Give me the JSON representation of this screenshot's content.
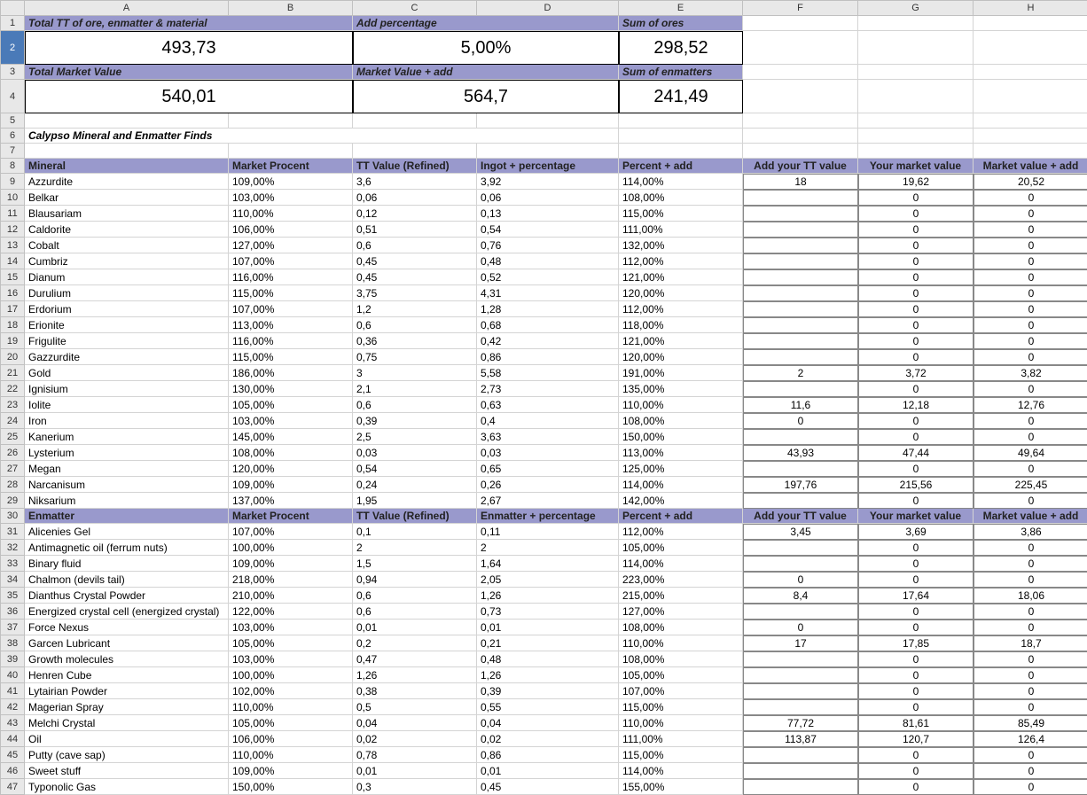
{
  "columns": [
    "A",
    "B",
    "C",
    "D",
    "E",
    "F",
    "G",
    "H"
  ],
  "summary": {
    "r1": {
      "a_label": "Total TT of ore, enmatter & material",
      "c_label": "Add percentage",
      "e_label": "Sum of ores"
    },
    "r2": {
      "a_val": "493,73",
      "c_val": "5,00%",
      "e_val": "298,52"
    },
    "r3": {
      "a_label": "Total Market Value",
      "c_label": "Market Value + add",
      "e_label": "Sum of enmatters"
    },
    "r4": {
      "a_val": "540,01",
      "c_val": "564,7",
      "e_val": "241,49"
    }
  },
  "section_title": "Calypso Mineral and Enmatter Finds",
  "mineral_header": {
    "a": "Mineral",
    "b": "Market Procent",
    "c": "TT Value (Refined)",
    "d": "Ingot + percentage",
    "e": "Percent + add",
    "f": "Add your TT value",
    "g": "Your market value",
    "h": "Market value + add"
  },
  "minerals": [
    {
      "n": "Azzurdite",
      "mp": "109,00%",
      "tt": "3,6",
      "ip": "3,92",
      "pa": "114,00%",
      "att": "18",
      "ymv": "19,62",
      "mva": "20,52"
    },
    {
      "n": "Belkar",
      "mp": "103,00%",
      "tt": "0,06",
      "ip": "0,06",
      "pa": "108,00%",
      "att": "",
      "ymv": "0",
      "mva": "0"
    },
    {
      "n": "Blausariam",
      "mp": "110,00%",
      "tt": "0,12",
      "ip": "0,13",
      "pa": "115,00%",
      "att": "",
      "ymv": "0",
      "mva": "0"
    },
    {
      "n": "Caldorite",
      "mp": "106,00%",
      "tt": "0,51",
      "ip": "0,54",
      "pa": "111,00%",
      "att": "",
      "ymv": "0",
      "mva": "0"
    },
    {
      "n": "Cobalt",
      "mp": "127,00%",
      "tt": "0,6",
      "ip": "0,76",
      "pa": "132,00%",
      "att": "",
      "ymv": "0",
      "mva": "0"
    },
    {
      "n": "Cumbriz",
      "mp": "107,00%",
      "tt": "0,45",
      "ip": "0,48",
      "pa": "112,00%",
      "att": "",
      "ymv": "0",
      "mva": "0"
    },
    {
      "n": "Dianum",
      "mp": "116,00%",
      "tt": "0,45",
      "ip": "0,52",
      "pa": "121,00%",
      "att": "",
      "ymv": "0",
      "mva": "0"
    },
    {
      "n": "Durulium",
      "mp": "115,00%",
      "tt": "3,75",
      "ip": "4,31",
      "pa": "120,00%",
      "att": "",
      "ymv": "0",
      "mva": "0"
    },
    {
      "n": "Erdorium",
      "mp": "107,00%",
      "tt": "1,2",
      "ip": "1,28",
      "pa": "112,00%",
      "att": "",
      "ymv": "0",
      "mva": "0"
    },
    {
      "n": "Erionite",
      "mp": "113,00%",
      "tt": "0,6",
      "ip": "0,68",
      "pa": "118,00%",
      "att": "",
      "ymv": "0",
      "mva": "0"
    },
    {
      "n": "Frigulite",
      "mp": "116,00%",
      "tt": "0,36",
      "ip": "0,42",
      "pa": "121,00%",
      "att": "",
      "ymv": "0",
      "mva": "0"
    },
    {
      "n": "Gazzurdite",
      "mp": "115,00%",
      "tt": "0,75",
      "ip": "0,86",
      "pa": "120,00%",
      "att": "",
      "ymv": "0",
      "mva": "0"
    },
    {
      "n": "Gold",
      "mp": "186,00%",
      "tt": "3",
      "ip": "5,58",
      "pa": "191,00%",
      "att": "2",
      "ymv": "3,72",
      "mva": "3,82"
    },
    {
      "n": "Ignisium",
      "mp": "130,00%",
      "tt": "2,1",
      "ip": "2,73",
      "pa": "135,00%",
      "att": "",
      "ymv": "0",
      "mva": "0"
    },
    {
      "n": "Iolite",
      "mp": "105,00%",
      "tt": "0,6",
      "ip": "0,63",
      "pa": "110,00%",
      "att": "11,6",
      "ymv": "12,18",
      "mva": "12,76"
    },
    {
      "n": "Iron",
      "mp": "103,00%",
      "tt": "0,39",
      "ip": "0,4",
      "pa": "108,00%",
      "att": "0",
      "ymv": "0",
      "mva": "0"
    },
    {
      "n": "Kanerium",
      "mp": "145,00%",
      "tt": "2,5",
      "ip": "3,63",
      "pa": "150,00%",
      "att": "",
      "ymv": "0",
      "mva": "0"
    },
    {
      "n": "Lysterium",
      "mp": "108,00%",
      "tt": "0,03",
      "ip": "0,03",
      "pa": "113,00%",
      "att": "43,93",
      "ymv": "47,44",
      "mva": "49,64"
    },
    {
      "n": "Megan",
      "mp": "120,00%",
      "tt": "0,54",
      "ip": "0,65",
      "pa": "125,00%",
      "att": "",
      "ymv": "0",
      "mva": "0"
    },
    {
      "n": "Narcanisum",
      "mp": "109,00%",
      "tt": "0,24",
      "ip": "0,26",
      "pa": "114,00%",
      "att": "197,76",
      "ymv": "215,56",
      "mva": "225,45"
    },
    {
      "n": "Niksarium",
      "mp": "137,00%",
      "tt": "1,95",
      "ip": "2,67",
      "pa": "142,00%",
      "att": "",
      "ymv": "0",
      "mva": "0"
    }
  ],
  "enmatter_header": {
    "a": "Enmatter",
    "b": "Market Procent",
    "c": "TT Value (Refined)",
    "d": "Enmatter + percentage",
    "e": "Percent + add",
    "f": "Add your TT value",
    "g": "Your market value",
    "h": "Market value + add"
  },
  "enmatters": [
    {
      "n": "Alicenies Gel",
      "mp": "107,00%",
      "tt": "0,1",
      "ip": "0,11",
      "pa": "112,00%",
      "att": "3,45",
      "ymv": "3,69",
      "mva": "3,86"
    },
    {
      "n": "Antimagnetic oil (ferrum nuts)",
      "mp": "100,00%",
      "tt": "2",
      "ip": "2",
      "pa": "105,00%",
      "att": "",
      "ymv": "0",
      "mva": "0"
    },
    {
      "n": "Binary fluid",
      "mp": "109,00%",
      "tt": "1,5",
      "ip": "1,64",
      "pa": "114,00%",
      "att": "",
      "ymv": "0",
      "mva": "0"
    },
    {
      "n": "Chalmon (devils tail)",
      "mp": "218,00%",
      "tt": "0,94",
      "ip": "2,05",
      "pa": "223,00%",
      "att": "0",
      "ymv": "0",
      "mva": "0"
    },
    {
      "n": "Dianthus Crystal Powder",
      "mp": "210,00%",
      "tt": "0,6",
      "ip": "1,26",
      "pa": "215,00%",
      "att": "8,4",
      "ymv": "17,64",
      "mva": "18,06"
    },
    {
      "n": "Energized crystal cell (energized crystal)",
      "mp": "122,00%",
      "tt": "0,6",
      "ip": "0,73",
      "pa": "127,00%",
      "att": "",
      "ymv": "0",
      "mva": "0"
    },
    {
      "n": "Force Nexus",
      "mp": "103,00%",
      "tt": "0,01",
      "ip": "0,01",
      "pa": "108,00%",
      "att": "0",
      "ymv": "0",
      "mva": "0"
    },
    {
      "n": "Garcen Lubricant",
      "mp": "105,00%",
      "tt": "0,2",
      "ip": "0,21",
      "pa": "110,00%",
      "att": "17",
      "ymv": "17,85",
      "mva": "18,7"
    },
    {
      "n": "Growth molecules",
      "mp": "103,00%",
      "tt": "0,47",
      "ip": "0,48",
      "pa": "108,00%",
      "att": "",
      "ymv": "0",
      "mva": "0"
    },
    {
      "n": "Henren Cube",
      "mp": "100,00%",
      "tt": "1,26",
      "ip": "1,26",
      "pa": "105,00%",
      "att": "",
      "ymv": "0",
      "mva": "0"
    },
    {
      "n": "Lytairian Powder",
      "mp": "102,00%",
      "tt": "0,38",
      "ip": "0,39",
      "pa": "107,00%",
      "att": "",
      "ymv": "0",
      "mva": "0"
    },
    {
      "n": "Magerian Spray",
      "mp": "110,00%",
      "tt": "0,5",
      "ip": "0,55",
      "pa": "115,00%",
      "att": "",
      "ymv": "0",
      "mva": "0"
    },
    {
      "n": "Melchi Crystal",
      "mp": "105,00%",
      "tt": "0,04",
      "ip": "0,04",
      "pa": "110,00%",
      "att": "77,72",
      "ymv": "81,61",
      "mva": "85,49"
    },
    {
      "n": "Oil",
      "mp": "106,00%",
      "tt": "0,02",
      "ip": "0,02",
      "pa": "111,00%",
      "att": "113,87",
      "ymv": "120,7",
      "mva": "126,4"
    },
    {
      "n": "Putty (cave sap)",
      "mp": "110,00%",
      "tt": "0,78",
      "ip": "0,86",
      "pa": "115,00%",
      "att": "",
      "ymv": "0",
      "mva": "0"
    },
    {
      "n": "Sweet stuff",
      "mp": "109,00%",
      "tt": "0,01",
      "ip": "0,01",
      "pa": "114,00%",
      "att": "",
      "ymv": "0",
      "mva": "0"
    },
    {
      "n": "Typonolic Gas",
      "mp": "150,00%",
      "tt": "0,3",
      "ip": "0,45",
      "pa": "155,00%",
      "att": "",
      "ymv": "0",
      "mva": "0"
    }
  ],
  "colors": {
    "header_bg": "#9999cc",
    "grid_bg": "#e8e8e8",
    "selected_row_bg": "#4a7ab8",
    "grid_line": "#d4d4d4"
  }
}
